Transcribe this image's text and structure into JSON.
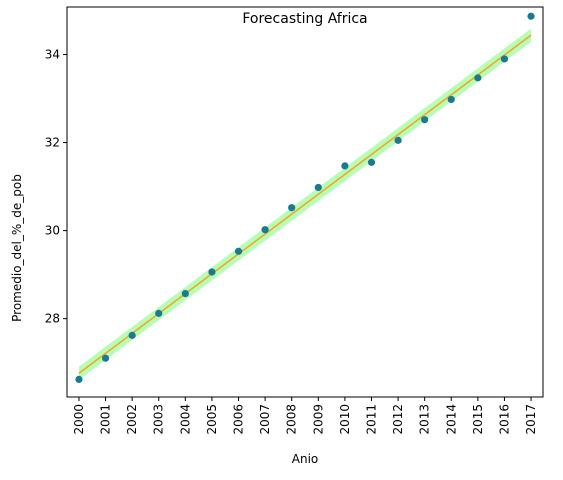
{
  "chart_data": {
    "type": "scatter",
    "title": "Forecasting Africa",
    "xlabel": "Anio",
    "ylabel": "Promedio_del_%_de_pob",
    "categories": [
      "2000",
      "2001",
      "2002",
      "2003",
      "2004",
      "2005",
      "2006",
      "2007",
      "2008",
      "2009",
      "2010",
      "2011",
      "2012",
      "2013",
      "2014",
      "2015",
      "2016",
      "2017"
    ],
    "xlim": [
      1999.55,
      2017.45
    ],
    "ylim": [
      26.22,
      35.08
    ],
    "yticks": [
      28,
      30,
      32,
      34
    ],
    "grid": false,
    "series": [
      {
        "type": "scatter",
        "values": [
          26.62,
          27.1,
          27.62,
          28.12,
          28.57,
          29.06,
          29.53,
          30.02,
          30.52,
          30.98,
          31.47,
          31.55,
          32.05,
          32.52,
          32.98,
          33.47,
          33.9,
          34.87
        ],
        "color": "#1b7a91"
      },
      {
        "type": "line",
        "x": [
          2000,
          2017
        ],
        "values": [
          26.76,
          34.44
        ],
        "color": "#f5a623"
      },
      {
        "type": "band",
        "x": [
          2000,
          2017
        ],
        "lower": [
          26.61,
          34.29
        ],
        "upper": [
          26.91,
          34.59
        ],
        "color": "#9efc9e"
      }
    ]
  }
}
